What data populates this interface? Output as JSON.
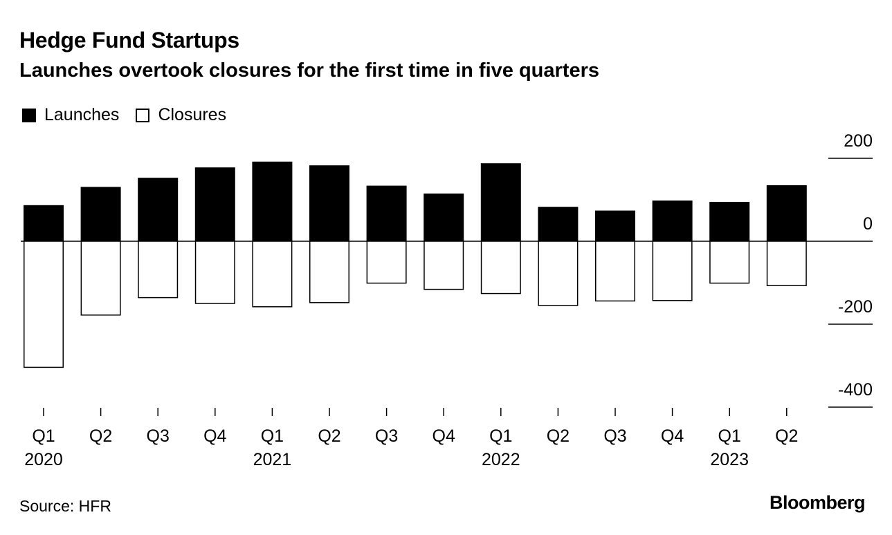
{
  "title": "Hedge Fund Startups",
  "subtitle": "Launches overtook closures for the first time in five quarters",
  "legend": {
    "launches": "Launches",
    "closures": "Closures"
  },
  "source": "Source: HFR",
  "brand": "Bloomberg",
  "chart_data": {
    "type": "bar",
    "categories": [
      "Q1 2020",
      "Q2 2020",
      "Q3 2020",
      "Q4 2020",
      "Q1 2021",
      "Q2 2021",
      "Q3 2021",
      "Q4 2021",
      "Q1 2022",
      "Q2 2022",
      "Q3 2022",
      "Q4 2022",
      "Q1 2023",
      "Q2 2023"
    ],
    "tick_labels": [
      "Q1",
      "Q2",
      "Q3",
      "Q4",
      "Q1",
      "Q2",
      "Q3",
      "Q4",
      "Q1",
      "Q2",
      "Q3",
      "Q4",
      "Q1",
      "Q2"
    ],
    "year_labels": [
      {
        "index": 0,
        "label": "2020"
      },
      {
        "index": 4,
        "label": "2021"
      },
      {
        "index": 8,
        "label": "2022"
      },
      {
        "index": 12,
        "label": "2023"
      }
    ],
    "series": [
      {
        "name": "Launches",
        "values": [
          87,
          131,
          153,
          178,
          192,
          183,
          134,
          115,
          188,
          83,
          74,
          98,
          95,
          135
        ]
      },
      {
        "name": "Closures",
        "values": [
          -304,
          -178,
          -136,
          -150,
          -158,
          -148,
          -101,
          -116,
          -126,
          -155,
          -144,
          -143,
          -101,
          -107
        ]
      }
    ],
    "ylim": [
      -400,
      200
    ],
    "yticks": [
      200,
      0,
      -200,
      -400
    ],
    "ytick_labels": [
      "200",
      "0",
      "-200",
      "-400"
    ],
    "colors": {
      "launches": "#000000",
      "closures": "#ffffff",
      "stroke": "#000000"
    },
    "title": "Hedge Fund Startups",
    "xlabel": "",
    "ylabel": ""
  }
}
